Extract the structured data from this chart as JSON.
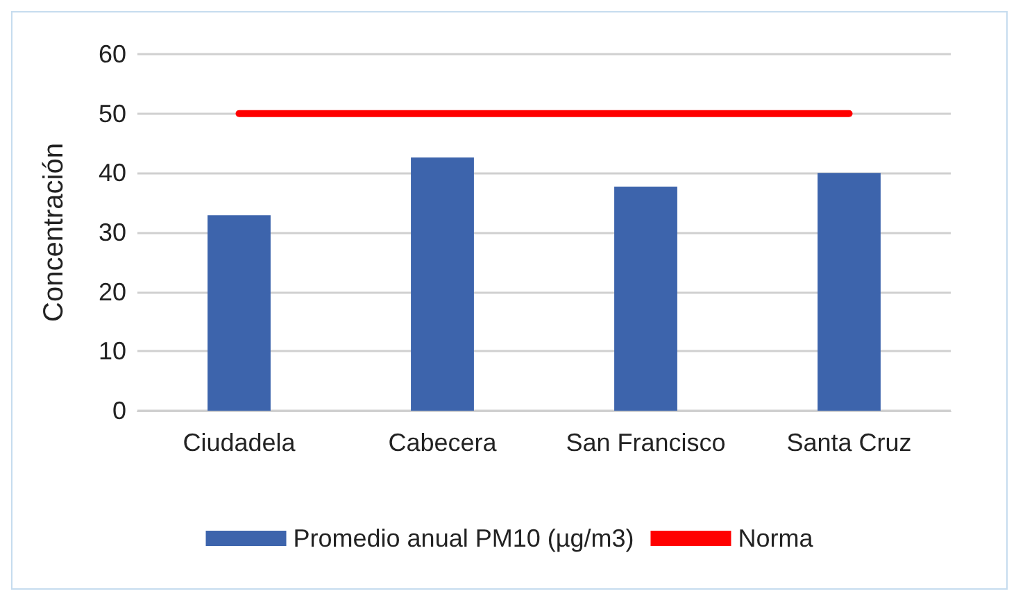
{
  "chart_data": {
    "type": "bar",
    "ylabel": "Concentración",
    "categories": [
      "Ciudadela",
      "Cabecera",
      "San Francisco",
      "Santa Cruz"
    ],
    "series": [
      {
        "name": "Promedio anual PM10 (µg/m3)",
        "color": "#3d64ac",
        "values": [
          32.9,
          42.6,
          37.7,
          40
        ]
      },
      {
        "name": "Norma",
        "type": "line",
        "color": "#ff0000",
        "values": [
          50,
          50,
          50,
          50
        ]
      }
    ],
    "ylim": [
      0,
      60
    ],
    "yticks": [
      0,
      10,
      20,
      30,
      40,
      50,
      60
    ],
    "grid": "y",
    "legend": "bottom",
    "marker": "none"
  }
}
